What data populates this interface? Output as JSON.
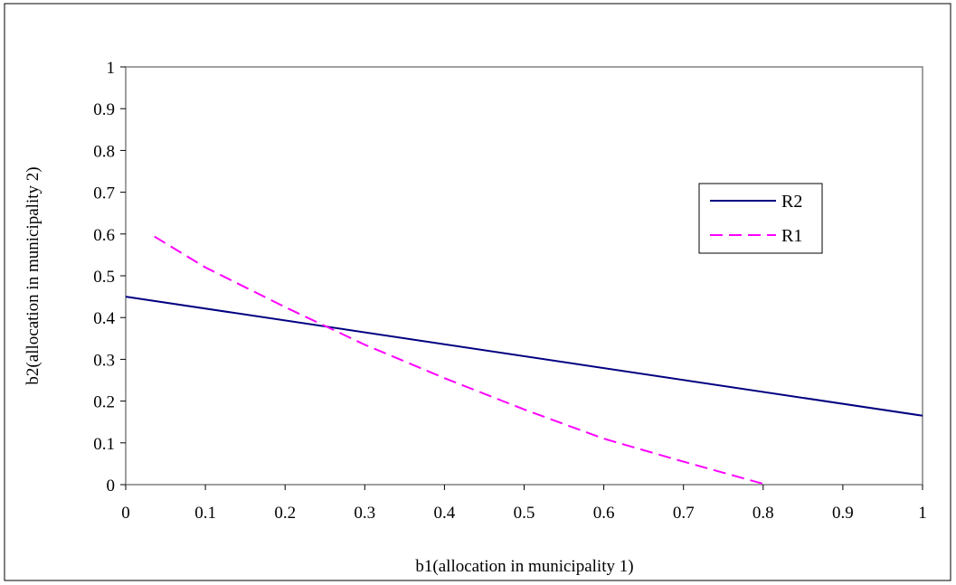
{
  "chart_data": {
    "type": "line",
    "xlabel": "b1(allocation in municipality 1)",
    "ylabel": "b2(allocation in municipality 2)",
    "xlim": [
      0,
      1
    ],
    "ylim": [
      0,
      1
    ],
    "x_ticks": [
      "0",
      "0.1",
      "0.2",
      "0.3",
      "0.4",
      "0.5",
      "0.6",
      "0.7",
      "0.8",
      "0.9",
      "1"
    ],
    "y_ticks": [
      "0",
      "0.1",
      "0.2",
      "0.3",
      "0.4",
      "0.5",
      "0.6",
      "0.7",
      "0.8",
      "0.9",
      "1"
    ],
    "grid": false,
    "legend_position": "right",
    "series": [
      {
        "name": "R2",
        "color": "#000080",
        "style": "solid",
        "x": [
          0,
          1
        ],
        "y": [
          0.45,
          0.165
        ]
      },
      {
        "name": "R1",
        "color": "#ff00ff",
        "style": "dashed",
        "x": [
          0.036,
          0.1,
          0.2,
          0.3,
          0.4,
          0.5,
          0.6,
          0.7,
          0.8,
          0.805
        ],
        "y": [
          0.594,
          0.52,
          0.425,
          0.335,
          0.255,
          0.18,
          0.11,
          0.055,
          0.002,
          0
        ]
      }
    ]
  }
}
